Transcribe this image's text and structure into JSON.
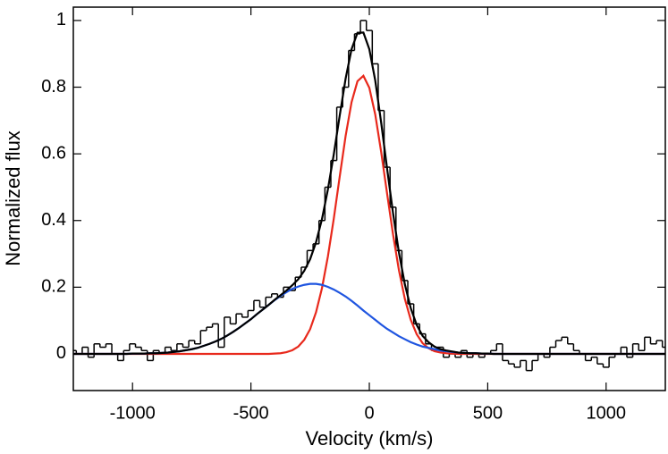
{
  "chart_data": {
    "type": "line",
    "xlabel": "Velocity (km/s)",
    "ylabel": "Normalized flux",
    "xlim": [
      -1250,
      1250
    ],
    "ylim": [
      -0.11,
      1.04
    ],
    "xticks": [
      -1000,
      -500,
      0,
      500,
      1000
    ],
    "yticks": [
      0,
      0.2,
      0.4,
      0.6,
      0.8,
      1
    ],
    "x": [
      -1250,
      -1225,
      -1200,
      -1175,
      -1150,
      -1125,
      -1100,
      -1075,
      -1050,
      -1025,
      -1000,
      -975,
      -950,
      -925,
      -900,
      -875,
      -850,
      -825,
      -800,
      -775,
      -750,
      -725,
      -700,
      -675,
      -650,
      -625,
      -600,
      -575,
      -550,
      -525,
      -500,
      -475,
      -450,
      -425,
      -400,
      -375,
      -350,
      -325,
      -300,
      -275,
      -250,
      -225,
      -200,
      -175,
      -150,
      -125,
      -100,
      -75,
      -50,
      -25,
      0,
      25,
      50,
      75,
      100,
      125,
      150,
      175,
      200,
      225,
      250,
      275,
      300,
      325,
      350,
      375,
      400,
      425,
      450,
      475,
      500,
      525,
      550,
      575,
      600,
      625,
      650,
      675,
      700,
      725,
      750,
      775,
      800,
      825,
      850,
      875,
      900,
      925,
      950,
      975,
      1000,
      1025,
      1050,
      1075,
      1100,
      1125,
      1150,
      1175,
      1200,
      1225,
      1250
    ],
    "series": [
      {
        "color": "#000000",
        "drawstyle": "steps-mid",
        "values": [
          0.01,
          0,
          0.02,
          -0.01,
          0.03,
          0.02,
          0.03,
          0,
          -0.02,
          0.01,
          0.03,
          0.02,
          0.01,
          -0.02,
          0.01,
          0,
          0.02,
          0.01,
          0.03,
          0.02,
          0.04,
          0.03,
          0.07,
          0.08,
          0.09,
          0.02,
          0.11,
          0.09,
          0.12,
          0.11,
          0.13,
          0.16,
          0.14,
          0.17,
          0.18,
          0.17,
          0.2,
          0.19,
          0.23,
          0.26,
          0.31,
          0.33,
          0.4,
          0.5,
          0.58,
          0.74,
          0.8,
          0.91,
          0.96,
          1.0,
          0.97,
          0.87,
          0.73,
          0.56,
          0.44,
          0.31,
          0.22,
          0.15,
          0.09,
          0.06,
          0.03,
          0.01,
          0.02,
          -0.01,
          0,
          -0.01,
          0.01,
          -0.01,
          0,
          -0.01,
          0,
          0.01,
          0.03,
          -0.02,
          -0.03,
          -0.04,
          -0.02,
          -0.05,
          -0.02,
          0,
          -0.01,
          0.02,
          0.04,
          0.05,
          0.03,
          0.01,
          0,
          -0.02,
          -0.01,
          -0.03,
          -0.04,
          -0.01,
          0,
          0.02,
          -0.01,
          0.03,
          0.01,
          0.05,
          0.03,
          0.04,
          0.02
        ]
      },
      {
        "color": "#e8291c",
        "drawstyle": "line",
        "values": [
          0,
          0,
          0,
          0,
          0,
          0,
          0,
          0,
          0,
          0,
          0,
          0,
          0,
          0,
          0,
          0,
          0,
          0,
          0,
          0,
          0,
          0,
          0,
          0,
          0,
          0,
          0,
          0,
          0,
          0,
          0,
          0,
          0,
          0,
          0.001,
          0.002,
          0.005,
          0.011,
          0.022,
          0.042,
          0.074,
          0.125,
          0.197,
          0.292,
          0.406,
          0.532,
          0.654,
          0.755,
          0.818,
          0.834,
          0.798,
          0.718,
          0.606,
          0.481,
          0.359,
          0.251,
          0.165,
          0.102,
          0.059,
          0.032,
          0.017,
          0.008,
          0.004,
          0.002,
          0.001,
          0,
          0,
          0,
          0,
          0,
          0,
          0,
          0,
          0,
          0,
          0,
          0,
          0,
          0,
          0,
          0,
          0,
          0,
          0,
          0,
          0,
          0,
          0,
          0,
          0,
          0,
          0,
          0,
          0,
          0,
          0,
          0,
          0,
          0,
          0,
          0
        ]
      },
      {
        "color": "#1f55e0",
        "drawstyle": "line",
        "values": [
          0,
          0,
          0,
          0,
          0,
          0,
          0,
          0,
          0,
          0,
          0.001,
          0.001,
          0.001,
          0.002,
          0.002,
          0.003,
          0.004,
          0.006,
          0.008,
          0.011,
          0.014,
          0.018,
          0.024,
          0.03,
          0.037,
          0.045,
          0.055,
          0.066,
          0.078,
          0.091,
          0.104,
          0.119,
          0.133,
          0.147,
          0.161,
          0.174,
          0.185,
          0.195,
          0.202,
          0.207,
          0.21,
          0.21,
          0.207,
          0.201,
          0.193,
          0.183,
          0.172,
          0.159,
          0.145,
          0.13,
          0.116,
          0.102,
          0.088,
          0.075,
          0.064,
          0.053,
          0.044,
          0.035,
          0.028,
          0.022,
          0.018,
          0.014,
          0.01,
          0.008,
          0.006,
          0.004,
          0.003,
          0.002,
          0.002,
          0.001,
          0.001,
          0,
          0,
          0,
          0,
          0,
          0,
          0,
          0,
          0,
          0,
          0,
          0,
          0,
          0,
          0,
          0,
          0,
          0,
          0,
          0,
          0,
          0,
          0,
          0,
          0,
          0,
          0,
          0,
          0,
          0
        ]
      },
      {
        "color": "#000000",
        "drawstyle": "line",
        "values": [
          0,
          0,
          0,
          0,
          0,
          0,
          0,
          0,
          0,
          0,
          0.001,
          0.001,
          0.001,
          0.002,
          0.002,
          0.003,
          0.004,
          0.006,
          0.008,
          0.011,
          0.014,
          0.018,
          0.024,
          0.03,
          0.037,
          0.045,
          0.055,
          0.066,
          0.078,
          0.091,
          0.104,
          0.119,
          0.133,
          0.147,
          0.162,
          0.176,
          0.19,
          0.206,
          0.224,
          0.249,
          0.284,
          0.335,
          0.404,
          0.493,
          0.599,
          0.715,
          0.826,
          0.914,
          0.963,
          0.964,
          0.914,
          0.82,
          0.694,
          0.556,
          0.423,
          0.304,
          0.209,
          0.137,
          0.087,
          0.054,
          0.035,
          0.022,
          0.014,
          0.01,
          0.007,
          0.004,
          0.003,
          0.002,
          0.002,
          0.001,
          0.001,
          0,
          0,
          0,
          0,
          0,
          0,
          0,
          0,
          0,
          0,
          0,
          0,
          0,
          0,
          0,
          0,
          0,
          0,
          0,
          0,
          0,
          0,
          0,
          0,
          0,
          0,
          0,
          0,
          0,
          0
        ]
      }
    ]
  }
}
